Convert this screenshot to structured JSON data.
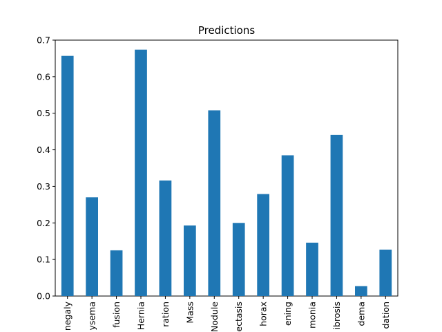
{
  "chart_data": {
    "type": "bar",
    "title": "Predictions",
    "xlabel": "",
    "ylabel": "",
    "ylim": [
      0,
      0.7
    ],
    "yticks": [
      "0.0",
      "0.1",
      "0.2",
      "0.3",
      "0.4",
      "0.5",
      "0.6",
      "0.7"
    ],
    "categories": [
      "negaly",
      "ysema",
      "fusion",
      "Hernia",
      "ration",
      "Mass",
      "Nodule",
      "ectasis",
      "horax",
      "ening",
      "monia",
      "ibrosis",
      "dema",
      "dation"
    ],
    "values": [
      0.657,
      0.27,
      0.125,
      0.674,
      0.316,
      0.193,
      0.508,
      0.2,
      0.279,
      0.385,
      0.146,
      0.441,
      0.027,
      0.127
    ],
    "bar_color": "#1f77b4",
    "grid": false,
    "legend": "none"
  }
}
